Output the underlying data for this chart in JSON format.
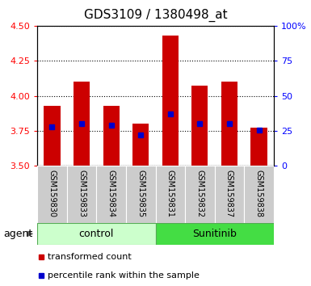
{
  "title": "GDS3109 / 1380498_at",
  "samples": [
    "GSM159830",
    "GSM159833",
    "GSM159834",
    "GSM159835",
    "GSM159831",
    "GSM159832",
    "GSM159837",
    "GSM159838"
  ],
  "bar_tops": [
    3.93,
    4.1,
    3.93,
    3.8,
    4.43,
    4.07,
    4.1,
    3.77
  ],
  "bar_bottoms": [
    3.5,
    3.5,
    3.5,
    3.5,
    3.5,
    3.5,
    3.5,
    3.5
  ],
  "blue_vals": [
    3.78,
    3.8,
    3.79,
    3.72,
    3.87,
    3.8,
    3.8,
    3.755
  ],
  "ylim": [
    3.5,
    4.5
  ],
  "yticks": [
    3.5,
    3.75,
    4.0,
    4.25,
    4.5
  ],
  "right_yticks": [
    0,
    25,
    50,
    75,
    100
  ],
  "bar_color": "#cc0000",
  "blue_color": "#0000cc",
  "control_color": "#ccffcc",
  "sunitinib_color": "#44dd44",
  "sample_bg": "#cccccc",
  "legend_red": "transformed count",
  "legend_blue": "percentile rank within the sample",
  "title_fontsize": 11,
  "tick_fontsize": 8,
  "sample_fontsize": 7,
  "group_fontsize": 9,
  "legend_fontsize": 8
}
